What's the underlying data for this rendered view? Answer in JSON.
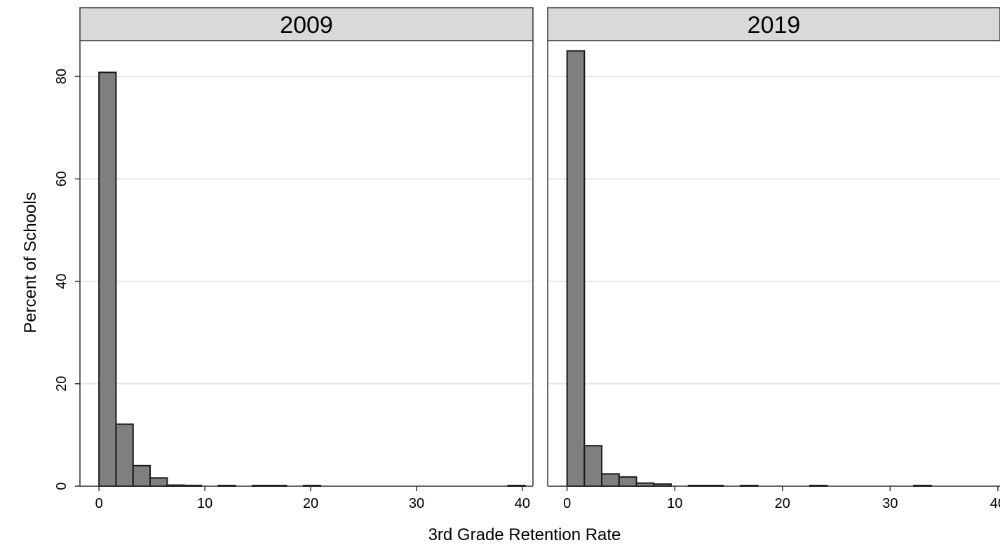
{
  "chart_data": {
    "type": "bar",
    "ylabel": "Percent of Schools",
    "xlabel": "3rd Grade Retention Rate",
    "ylim": [
      0,
      87
    ],
    "yticks": [
      0,
      20,
      40,
      60,
      80
    ],
    "xticks": [
      0,
      10,
      20,
      30,
      40
    ],
    "bin_width": 1.61,
    "colors": {
      "bar_fill": "#7f7f7f",
      "bar_stroke": "#1a1a1a",
      "strip_fill": "#d9d9d9",
      "grid": "#e6e6e6"
    },
    "grid": true,
    "panels": [
      {
        "title": "2009",
        "xlim": [
          -1.8,
          41
        ],
        "bins": [
          {
            "x": 0.0,
            "value": 80.8
          },
          {
            "x": 1.61,
            "value": 12.1
          },
          {
            "x": 3.22,
            "value": 4.0
          },
          {
            "x": 4.83,
            "value": 1.6
          },
          {
            "x": 6.44,
            "value": 0.2
          },
          {
            "x": 8.05,
            "value": 0.15
          },
          {
            "x": 11.27,
            "value": 0.1
          },
          {
            "x": 14.49,
            "value": 0.1
          },
          {
            "x": 16.1,
            "value": 0.1
          },
          {
            "x": 19.32,
            "value": 0.1
          },
          {
            "x": 38.64,
            "value": 0.1
          }
        ]
      },
      {
        "title": "2019",
        "xlim": [
          -1.8,
          40.2
        ],
        "bins": [
          {
            "x": 0.0,
            "value": 85.0
          },
          {
            "x": 1.61,
            "value": 7.9
          },
          {
            "x": 3.22,
            "value": 2.4
          },
          {
            "x": 4.83,
            "value": 1.8
          },
          {
            "x": 6.44,
            "value": 0.6
          },
          {
            "x": 8.05,
            "value": 0.4
          },
          {
            "x": 11.27,
            "value": 0.1
          },
          {
            "x": 12.88,
            "value": 0.1
          },
          {
            "x": 16.1,
            "value": 0.1
          },
          {
            "x": 22.54,
            "value": 0.1
          },
          {
            "x": 32.2,
            "value": 0.1
          }
        ]
      }
    ]
  }
}
